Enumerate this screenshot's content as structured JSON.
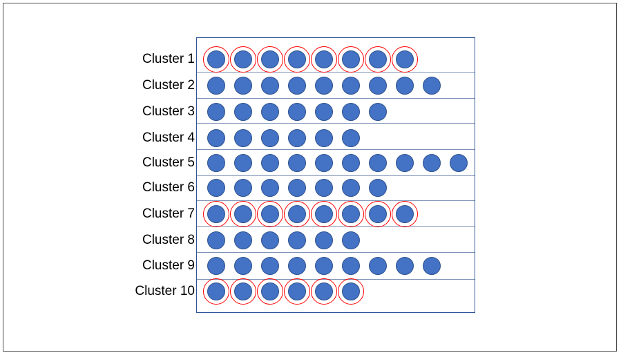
{
  "clusters": [
    {
      "label": "Cluster 1",
      "count": 8,
      "highlighted": true
    },
    {
      "label": "Cluster 2",
      "count": 9,
      "highlighted": false
    },
    {
      "label": "Cluster 3",
      "count": 7,
      "highlighted": false
    },
    {
      "label": "Cluster 4",
      "count": 6,
      "highlighted": false
    },
    {
      "label": "Cluster 5",
      "count": 10,
      "highlighted": false
    },
    {
      "label": "Cluster 6",
      "count": 7,
      "highlighted": false
    },
    {
      "label": "Cluster 7",
      "count": 8,
      "highlighted": true
    },
    {
      "label": "Cluster 8",
      "count": 6,
      "highlighted": false
    },
    {
      "label": "Cluster 9",
      "count": 9,
      "highlighted": false
    },
    {
      "label": "Cluster 10",
      "count": 6,
      "highlighted": true
    }
  ],
  "colors": {
    "dot_fill": "#4472c4",
    "dot_outline": "#2f528f",
    "highlight_ring": "#ff0000",
    "grid_border": "#2f5597"
  }
}
